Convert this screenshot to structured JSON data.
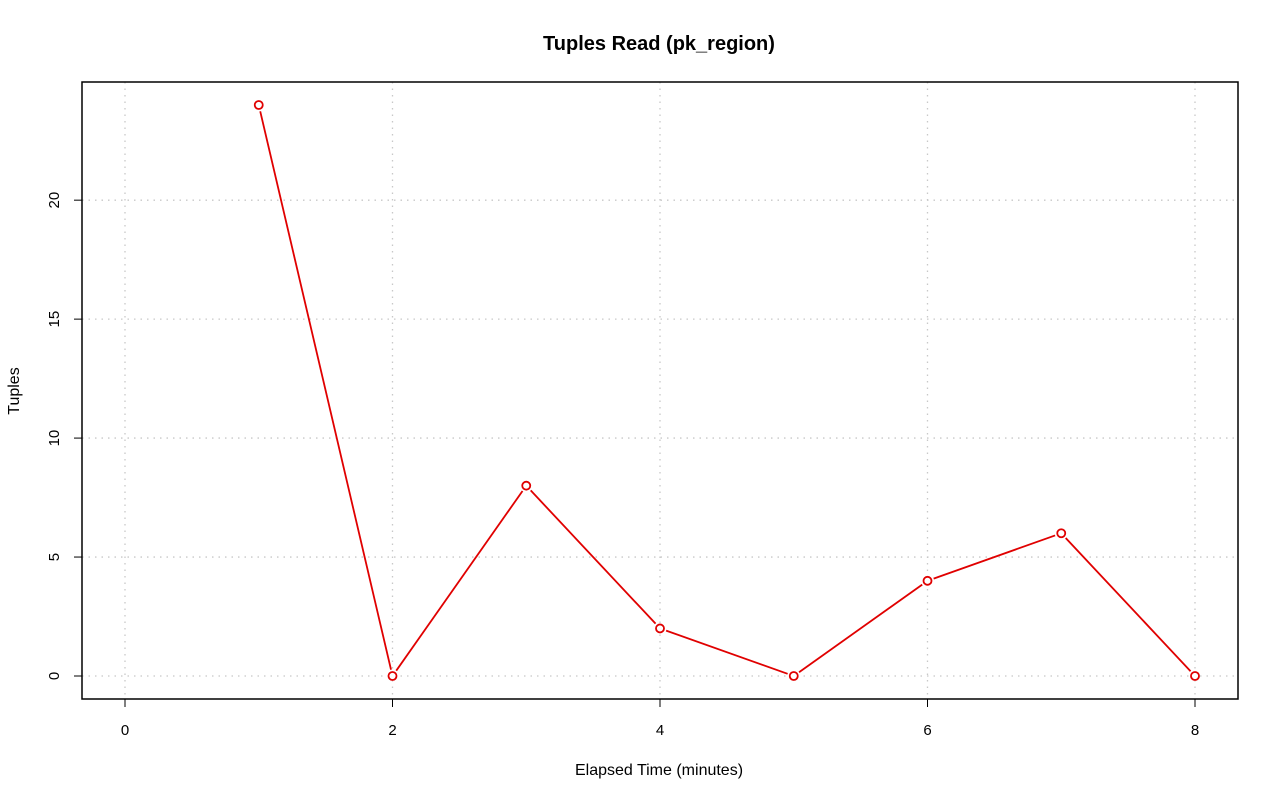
{
  "chart_data": {
    "type": "line",
    "title": "Tuples Read (pk_region)",
    "xlabel": "Elapsed Time (minutes)",
    "ylabel": "Tuples",
    "xlim": [
      0,
      8
    ],
    "ylim": [
      0,
      24
    ],
    "x_ticks": [
      0,
      2,
      4,
      6,
      8
    ],
    "y_ticks": [
      0,
      5,
      10,
      15,
      20
    ],
    "grid": true,
    "x_tick_labels": [
      "0",
      "2",
      "4",
      "6",
      "8"
    ],
    "y_tick_labels": [
      "0",
      "5",
      "10",
      "15",
      "20"
    ],
    "series": [
      {
        "color": "#e00000",
        "marker": "open-circle",
        "x": [
          1,
          2,
          3,
          4,
          5,
          6,
          7,
          8
        ],
        "y": [
          24,
          0,
          8,
          2,
          0,
          4,
          6,
          0
        ]
      }
    ]
  }
}
